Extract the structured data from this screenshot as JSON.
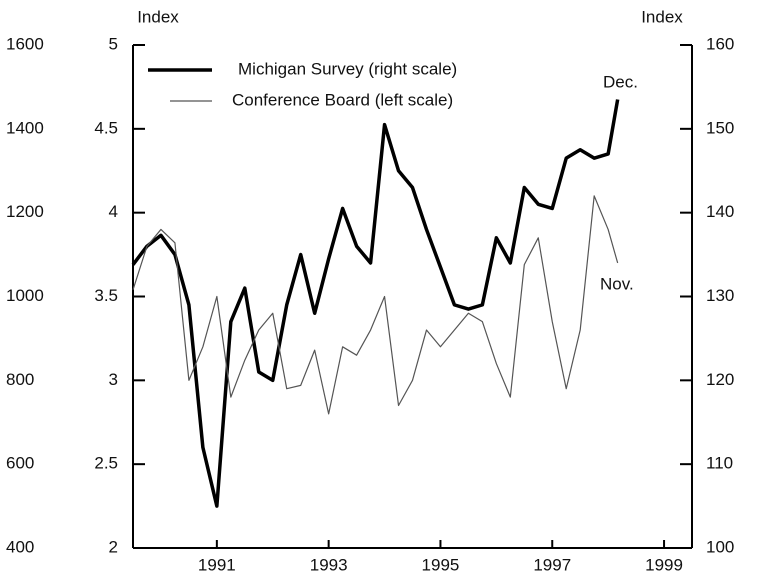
{
  "chart_data": {
    "type": "line",
    "ylabel": "Index",
    "y2label": "Index",
    "x": [
      1989.5,
      1989.75,
      1990,
      1990.25,
      1990.5,
      1990.75,
      1991,
      1991.25,
      1991.5,
      1991.75,
      1992,
      1992.25,
      1992.5,
      1992.75,
      1993,
      1993.25,
      1993.5,
      1993.75,
      1994,
      1994.25,
      1994.5,
      1994.75,
      1995,
      1995.25,
      1995.5,
      1995.75,
      1996,
      1996.25,
      1996.5,
      1996.75,
      1997,
      1997.25,
      1997.5,
      1997.75,
      1998,
      1998.17
    ],
    "series": [
      {
        "name": "Michigan Survey (right scale)",
        "color": "#000000",
        "axis": "y2",
        "values": [
          133.8,
          136,
          137.3,
          135,
          129,
          112,
          105,
          127,
          131,
          121,
          120,
          129,
          135,
          128,
          134.5,
          140.5,
          136,
          134,
          150.5,
          145,
          143,
          138,
          133.5,
          129,
          128.5,
          129,
          137,
          134,
          143,
          141,
          140.5,
          146.5,
          147.5,
          146.5,
          147,
          153.5
        ]
      },
      {
        "name": "Conference Board (left scale)",
        "color": "#555555",
        "values": [
          3.54,
          3.8,
          3.9,
          3.82,
          3.0,
          3.2,
          3.5,
          2.9,
          3.12,
          3.3,
          3.4,
          2.95,
          2.97,
          3.18,
          2.8,
          3.2,
          3.15,
          3.3,
          3.5,
          2.85,
          3.0,
          3.3,
          3.2,
          3.3,
          3.4,
          3.35,
          3.1,
          2.9,
          3.69,
          3.85,
          3.35,
          2.95,
          3.3,
          4.1,
          3.9,
          3.7
        ]
      }
    ],
    "xlim": [
      1989.5,
      1999.5
    ],
    "xticks": [
      1991,
      1993,
      1995,
      1997,
      1999
    ],
    "ylim": [
      2,
      5
    ],
    "yticks": [
      2,
      2.5,
      3,
      3.5,
      4,
      4.5,
      5
    ],
    "y3lim": [
      400,
      1600
    ],
    "y3ticks": [
      400,
      600,
      800,
      1000,
      1200,
      1400,
      1600
    ],
    "y2lim": [
      100,
      160
    ],
    "y2ticks": [
      100,
      110,
      120,
      130,
      140,
      150,
      160
    ],
    "annotations": [
      "Dec.",
      "Nov."
    ]
  }
}
